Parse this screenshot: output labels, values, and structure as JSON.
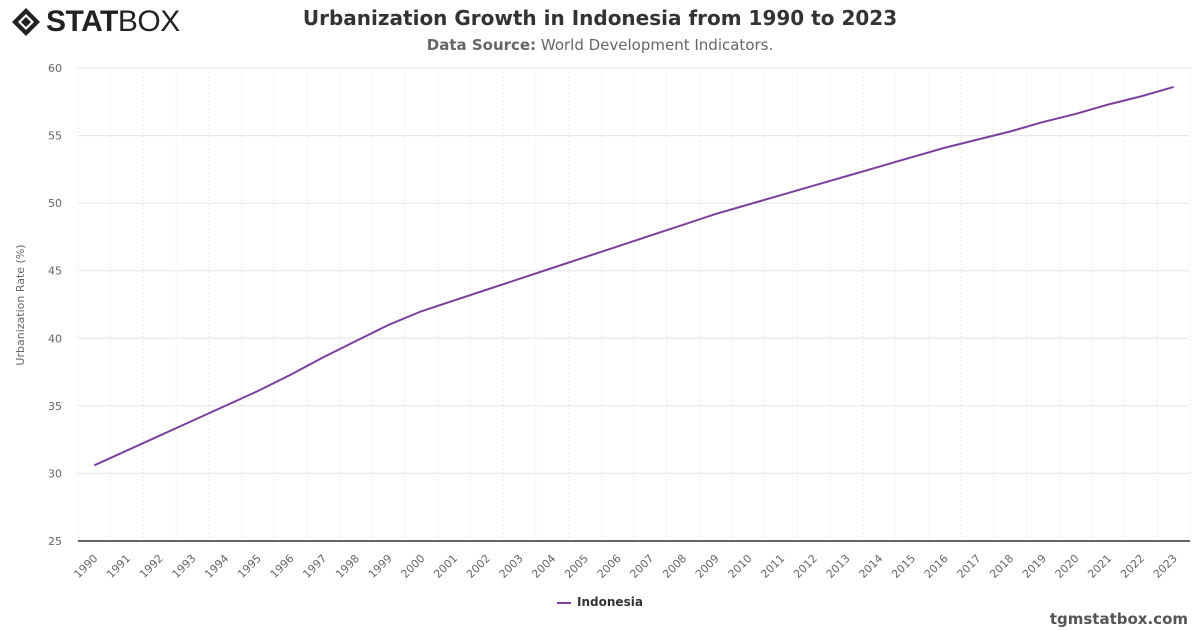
{
  "logo": {
    "bold": "STAT",
    "light": "BOX"
  },
  "header": {
    "title": "Urbanization Growth in Indonesia from 1990 to 2023",
    "subtitle_label": "Data Source:",
    "subtitle_value": "World Development Indicators."
  },
  "footer": {
    "site": "tgmstatbox.com"
  },
  "colors": {
    "line": "#7b3f9e",
    "grid": "#e6e6e6",
    "axis": "#333333"
  },
  "chart_data": {
    "type": "line",
    "title": "Urbanization Growth in Indonesia from 1990 to 2023",
    "xlabel": "",
    "ylabel": "Urbanization Rate (%)",
    "ylim": [
      25,
      60
    ],
    "yticks": [
      25,
      30,
      35,
      40,
      45,
      50,
      55,
      60
    ],
    "grid": true,
    "legend": "bottom-center",
    "categories": [
      "1990",
      "1991",
      "1992",
      "1993",
      "1994",
      "1995",
      "1996",
      "1997",
      "1998",
      "1999",
      "2000",
      "2001",
      "2002",
      "2003",
      "2004",
      "2005",
      "2006",
      "2007",
      "2008",
      "2009",
      "2010",
      "2011",
      "2012",
      "2013",
      "2014",
      "2015",
      "2016",
      "2017",
      "2018",
      "2019",
      "2020",
      "2021",
      "2022",
      "2023"
    ],
    "series": [
      {
        "name": "Indonesia",
        "values": [
          30.6,
          31.7,
          32.8,
          33.9,
          35.0,
          36.1,
          37.3,
          38.6,
          39.8,
          41.0,
          42.0,
          42.8,
          43.6,
          44.4,
          45.2,
          46.0,
          46.8,
          47.6,
          48.4,
          49.2,
          49.9,
          50.6,
          51.3,
          52.0,
          52.7,
          53.4,
          54.1,
          54.7,
          55.3,
          56.0,
          56.6,
          57.3,
          57.9,
          58.6
        ]
      }
    ]
  }
}
